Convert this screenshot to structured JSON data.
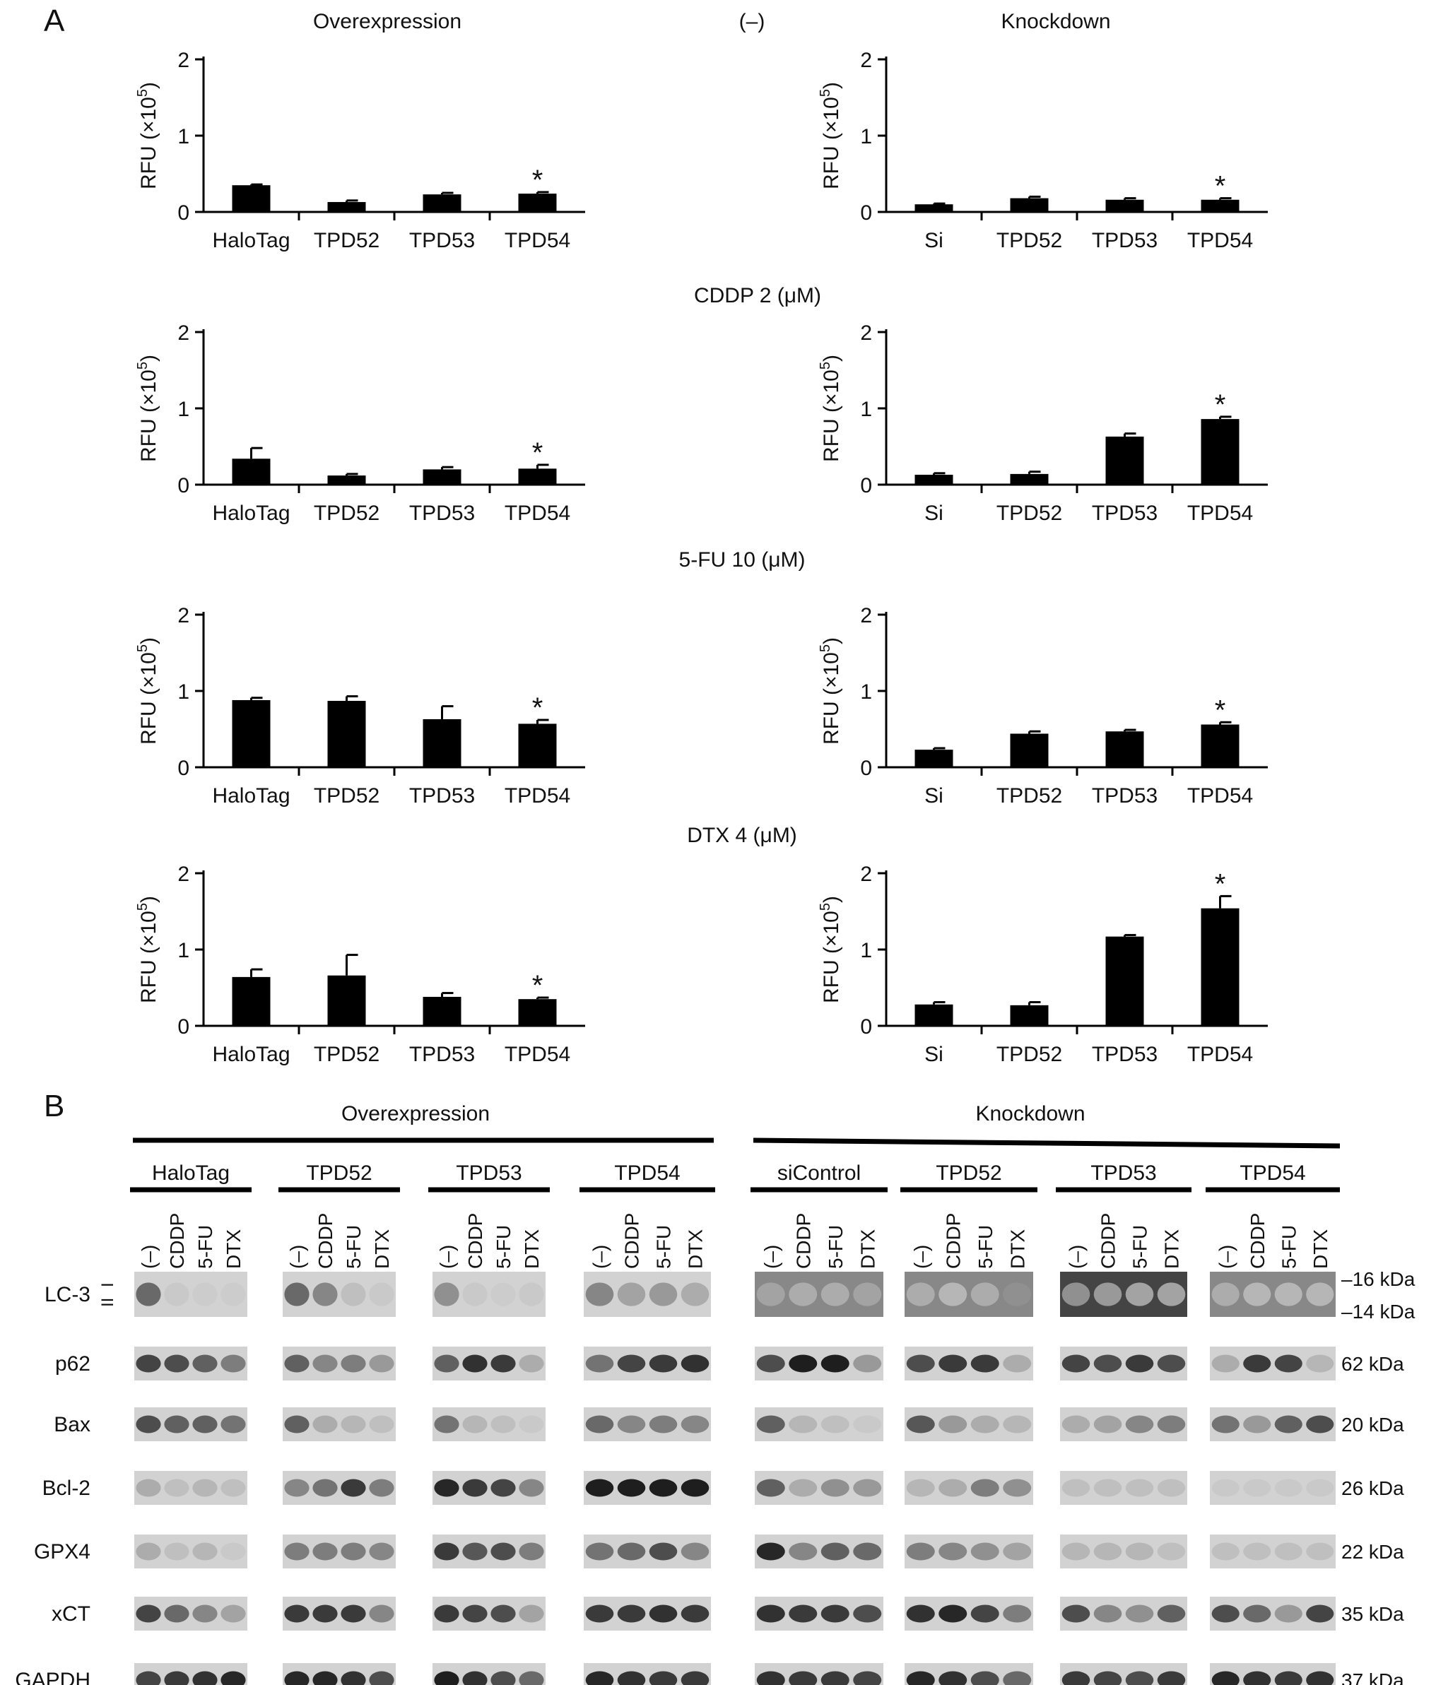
{
  "panel_a": {
    "label": "A",
    "col_titles": {
      "overexpression": "Overexpression",
      "condition_none": "(–)",
      "knockdown": "Knockdown"
    },
    "condition_titles": [
      "CDDP 2 (μM)",
      "5-FU 10 (μM)",
      "DTX 4 (μM)"
    ],
    "ylabel_base": "RFU (×10",
    "ylabel_exp": "5",
    "ylabel_close": ")",
    "y_ticks": [
      "0",
      "1",
      "2"
    ],
    "significance_mark": "*"
  },
  "chart_data": [
    {
      "type": "bar",
      "panel": "overexpression",
      "condition": "(–)",
      "categories": [
        "HaloTag",
        "TPD52",
        "TPD53",
        "TPD54"
      ],
      "values": [
        0.35,
        0.13,
        0.23,
        0.24
      ],
      "errors": [
        0.01,
        0.02,
        0.02,
        0.02
      ],
      "significant": [
        false,
        false,
        false,
        true
      ],
      "ylabel": "RFU (×10^5)",
      "ylim": [
        0,
        2
      ]
    },
    {
      "type": "bar",
      "panel": "knockdown",
      "condition": "(–)",
      "categories": [
        "Si",
        "TPD52",
        "TPD53",
        "TPD54"
      ],
      "values": [
        0.1,
        0.18,
        0.16,
        0.16
      ],
      "errors": [
        0.01,
        0.02,
        0.02,
        0.02
      ],
      "significant": [
        false,
        false,
        false,
        true
      ],
      "ylabel": "RFU (×10^5)",
      "ylim": [
        0,
        2
      ]
    },
    {
      "type": "bar",
      "panel": "overexpression",
      "condition": "CDDP 2 (μM)",
      "categories": [
        "HaloTag",
        "TPD52",
        "TPD53",
        "TPD54"
      ],
      "values": [
        0.34,
        0.12,
        0.2,
        0.21
      ],
      "errors": [
        0.14,
        0.02,
        0.03,
        0.05
      ],
      "significant": [
        false,
        false,
        false,
        true
      ],
      "ylabel": "RFU (×10^5)",
      "ylim": [
        0,
        2
      ]
    },
    {
      "type": "bar",
      "panel": "knockdown",
      "condition": "CDDP 2 (μM)",
      "categories": [
        "Si",
        "TPD52",
        "TPD53",
        "TPD54"
      ],
      "values": [
        0.13,
        0.14,
        0.63,
        0.86
      ],
      "errors": [
        0.02,
        0.03,
        0.04,
        0.03
      ],
      "significant": [
        false,
        false,
        false,
        true
      ],
      "ylabel": "RFU (×10^5)",
      "ylim": [
        0,
        2
      ]
    },
    {
      "type": "bar",
      "panel": "overexpression",
      "condition": "5-FU 10 (μM)",
      "categories": [
        "HaloTag",
        "TPD52",
        "TPD53",
        "TPD54"
      ],
      "values": [
        0.88,
        0.87,
        0.63,
        0.57
      ],
      "errors": [
        0.03,
        0.06,
        0.17,
        0.05
      ],
      "significant": [
        false,
        false,
        false,
        true
      ],
      "ylabel": "RFU (×10^5)",
      "ylim": [
        0,
        2
      ]
    },
    {
      "type": "bar",
      "panel": "knockdown",
      "condition": "5-FU 10 (μM)",
      "categories": [
        "Si",
        "TPD52",
        "TPD53",
        "TPD54"
      ],
      "values": [
        0.23,
        0.44,
        0.47,
        0.56
      ],
      "errors": [
        0.02,
        0.03,
        0.02,
        0.03
      ],
      "significant": [
        false,
        false,
        false,
        true
      ],
      "ylabel": "RFU (×10^5)",
      "ylim": [
        0,
        2
      ]
    },
    {
      "type": "bar",
      "panel": "overexpression",
      "condition": "DTX 4 (μM)",
      "categories": [
        "HaloTag",
        "TPD52",
        "TPD53",
        "TPD54"
      ],
      "values": [
        0.64,
        0.66,
        0.38,
        0.35
      ],
      "errors": [
        0.1,
        0.27,
        0.05,
        0.02
      ],
      "significant": [
        false,
        false,
        false,
        true
      ],
      "ylabel": "RFU (×10^5)",
      "ylim": [
        0,
        2
      ]
    },
    {
      "type": "bar",
      "panel": "knockdown",
      "condition": "DTX 4 (μM)",
      "categories": [
        "Si",
        "TPD52",
        "TPD53",
        "TPD54"
      ],
      "values": [
        0.28,
        0.27,
        1.17,
        1.54
      ],
      "errors": [
        0.03,
        0.04,
        0.02,
        0.16
      ],
      "significant": [
        false,
        false,
        false,
        true
      ],
      "ylabel": "RFU (×10^5)",
      "ylim": [
        0,
        2
      ]
    }
  ],
  "panel_b": {
    "label": "B",
    "group_titles": [
      "Overexpression",
      "Knockdown"
    ],
    "constructs": [
      "HaloTag",
      "TPD52",
      "TPD53",
      "TPD54",
      "siControl",
      "TPD52",
      "TPD53",
      "TPD54"
    ],
    "lanes": [
      "(–)",
      "CDDP",
      "5-FU",
      "DTX"
    ],
    "lc3_forms": [
      "I",
      "II"
    ],
    "blots": [
      {
        "protein": "LC-3",
        "kda": [
          "–16 kDa",
          "–14 kDa"
        ]
      },
      {
        "protein": "p62",
        "kda": [
          "62 kDa"
        ]
      },
      {
        "protein": "Bax",
        "kda": [
          "20 kDa"
        ]
      },
      {
        "protein": "Bcl-2",
        "kda": [
          "26 kDa"
        ]
      },
      {
        "protein": "GPX4",
        "kda": [
          "22 kDa"
        ]
      },
      {
        "protein": "xCT",
        "kda": [
          "35 kDa"
        ]
      },
      {
        "protein": "GAPDH",
        "kda": [
          "37 kDa"
        ]
      }
    ],
    "band_intensity": [
      [
        [
          0.55,
          0.05,
          0.03,
          0.03
        ],
        [
          0.55,
          0.4,
          0.1,
          0.05
        ],
        [
          0.35,
          0.05,
          0.03,
          0.05
        ],
        [
          0.4,
          0.25,
          0.3,
          0.2
        ],
        [
          0.25,
          0.2,
          0.2,
          0.25
        ],
        [
          0.2,
          0.15,
          0.2,
          0.35
        ],
        [
          0.35,
          0.3,
          0.25,
          0.25
        ],
        [
          0.2,
          0.15,
          0.15,
          0.15
        ]
      ],
      [
        [
          0.75,
          0.7,
          0.6,
          0.45
        ],
        [
          0.6,
          0.4,
          0.45,
          0.3
        ],
        [
          0.6,
          0.85,
          0.8,
          0.2
        ],
        [
          0.5,
          0.75,
          0.8,
          0.85
        ],
        [
          0.7,
          0.95,
          0.95,
          0.3
        ],
        [
          0.7,
          0.8,
          0.8,
          0.2
        ],
        [
          0.75,
          0.7,
          0.8,
          0.7
        ],
        [
          0.2,
          0.8,
          0.75,
          0.15
        ]
      ],
      [
        [
          0.7,
          0.6,
          0.6,
          0.5
        ],
        [
          0.6,
          0.2,
          0.15,
          0.1
        ],
        [
          0.5,
          0.15,
          0.1,
          0.05
        ],
        [
          0.55,
          0.4,
          0.45,
          0.4
        ],
        [
          0.6,
          0.15,
          0.1,
          0.05
        ],
        [
          0.65,
          0.3,
          0.2,
          0.15
        ],
        [
          0.2,
          0.25,
          0.4,
          0.45
        ],
        [
          0.5,
          0.3,
          0.6,
          0.7
        ]
      ],
      [
        [
          0.2,
          0.1,
          0.15,
          0.1
        ],
        [
          0.4,
          0.5,
          0.8,
          0.45
        ],
        [
          0.9,
          0.8,
          0.75,
          0.4
        ],
        [
          0.95,
          0.95,
          0.95,
          0.95
        ],
        [
          0.6,
          0.2,
          0.35,
          0.3
        ],
        [
          0.15,
          0.2,
          0.45,
          0.35
        ],
        [
          0.1,
          0.1,
          0.1,
          0.1
        ],
        [
          0.05,
          0.05,
          0.05,
          0.05
        ]
      ],
      [
        [
          0.2,
          0.1,
          0.15,
          0.05
        ],
        [
          0.45,
          0.45,
          0.45,
          0.4
        ],
        [
          0.8,
          0.65,
          0.7,
          0.45
        ],
        [
          0.5,
          0.55,
          0.7,
          0.4
        ],
        [
          0.9,
          0.4,
          0.6,
          0.55
        ],
        [
          0.45,
          0.4,
          0.35,
          0.25
        ],
        [
          0.15,
          0.15,
          0.15,
          0.1
        ],
        [
          0.1,
          0.1,
          0.1,
          0.1
        ]
      ],
      [
        [
          0.75,
          0.55,
          0.4,
          0.25
        ],
        [
          0.8,
          0.8,
          0.8,
          0.4
        ],
        [
          0.8,
          0.75,
          0.7,
          0.25
        ],
        [
          0.8,
          0.8,
          0.85,
          0.8
        ],
        [
          0.85,
          0.8,
          0.8,
          0.7
        ],
        [
          0.85,
          0.9,
          0.75,
          0.45
        ],
        [
          0.7,
          0.4,
          0.35,
          0.6
        ],
        [
          0.7,
          0.55,
          0.3,
          0.75
        ]
      ],
      [
        [
          0.75,
          0.8,
          0.85,
          0.9
        ],
        [
          0.9,
          0.9,
          0.85,
          0.7
        ],
        [
          0.95,
          0.85,
          0.7,
          0.55
        ],
        [
          0.9,
          0.85,
          0.8,
          0.8
        ],
        [
          0.85,
          0.8,
          0.8,
          0.75
        ],
        [
          0.9,
          0.85,
          0.7,
          0.55
        ],
        [
          0.8,
          0.75,
          0.7,
          0.8
        ],
        [
          0.9,
          0.85,
          0.8,
          0.85
        ]
      ]
    ]
  }
}
